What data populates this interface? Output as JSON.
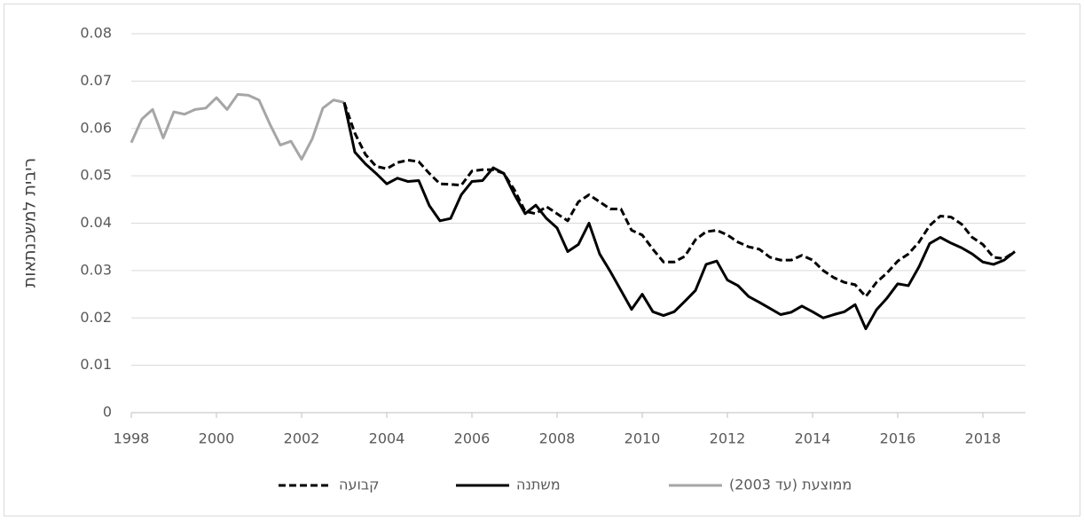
{
  "chart_data": {
    "type": "line",
    "y_label": "ריבית למשכנתאות",
    "x": [
      1998,
      1998.25,
      1998.5,
      1998.75,
      1999,
      1999.25,
      1999.5,
      1999.75,
      2000,
      2000.25,
      2000.5,
      2000.75,
      2001,
      2001.25,
      2001.5,
      2001.75,
      2002,
      2002.25,
      2002.5,
      2002.75,
      2003,
      2003.25,
      2003.5,
      2003.75,
      2004,
      2004.25,
      2004.5,
      2004.75,
      2005,
      2005.25,
      2005.5,
      2005.75,
      2006,
      2006.25,
      2006.5,
      2006.75,
      2007,
      2007.25,
      2007.5,
      2007.75,
      2008,
      2008.25,
      2008.5,
      2008.75,
      2009,
      2009.25,
      2009.5,
      2009.75,
      2010,
      2010.25,
      2010.5,
      2010.75,
      2011,
      2011.25,
      2011.5,
      2011.75,
      2012,
      2012.25,
      2012.5,
      2012.75,
      2013,
      2013.25,
      2013.5,
      2013.75,
      2014,
      2014.25,
      2014.5,
      2014.75,
      2015,
      2015.25,
      2015.5,
      2015.75,
      2016,
      2016.25,
      2016.5,
      2016.75,
      2017,
      2017.25,
      2017.5,
      2017.75,
      2018,
      2018.25,
      2018.5,
      2018.75
    ],
    "series": [
      {
        "name": "קבועה",
        "color": "#000000",
        "style": "dashed",
        "values": [
          null,
          null,
          null,
          null,
          null,
          null,
          null,
          null,
          null,
          null,
          null,
          null,
          null,
          null,
          null,
          null,
          null,
          null,
          null,
          null,
          0.0655,
          0.059,
          0.0545,
          0.052,
          0.0515,
          0.0528,
          0.0533,
          0.053,
          0.0505,
          0.0483,
          0.0482,
          0.048,
          0.051,
          0.0513,
          0.0513,
          0.0505,
          0.047,
          0.0425,
          0.042,
          0.0435,
          0.042,
          0.0405,
          0.0445,
          0.046,
          0.0445,
          0.043,
          0.043,
          0.0385,
          0.0375,
          0.0345,
          0.0318,
          0.0318,
          0.033,
          0.0365,
          0.0382,
          0.0385,
          0.0375,
          0.036,
          0.035,
          0.0345,
          0.0328,
          0.0322,
          0.0322,
          0.0332,
          0.0322,
          0.03,
          0.0285,
          0.0275,
          0.027,
          0.0245,
          0.0275,
          0.0295,
          0.032,
          0.0335,
          0.036,
          0.0395,
          0.0415,
          0.0413,
          0.0398,
          0.037,
          0.0355,
          0.0328,
          0.0325,
          0.034
        ]
      },
      {
        "name": "משתנה",
        "color": "#000000",
        "style": "solid",
        "values": [
          null,
          null,
          null,
          null,
          null,
          null,
          null,
          null,
          null,
          null,
          null,
          null,
          null,
          null,
          null,
          null,
          null,
          null,
          null,
          null,
          0.0655,
          0.055,
          0.0525,
          0.0505,
          0.0483,
          0.0495,
          0.0488,
          0.049,
          0.0437,
          0.0405,
          0.041,
          0.046,
          0.0488,
          0.049,
          0.0517,
          0.0505,
          0.046,
          0.042,
          0.0438,
          0.041,
          0.039,
          0.034,
          0.0355,
          0.04,
          0.0335,
          0.0298,
          0.0258,
          0.0218,
          0.025,
          0.0213,
          0.0205,
          0.0213,
          0.0235,
          0.0258,
          0.0313,
          0.032,
          0.028,
          0.0268,
          0.0245,
          0.0233,
          0.022,
          0.0207,
          0.0212,
          0.0225,
          0.0213,
          0.02,
          0.0207,
          0.0213,
          0.0228,
          0.0177,
          0.0217,
          0.0242,
          0.0272,
          0.0268,
          0.0308,
          0.0357,
          0.037,
          0.0358,
          0.0348,
          0.0335,
          0.0318,
          0.0313,
          0.0322,
          0.034
        ]
      },
      {
        "name": "ממוצעת (עד 2003)",
        "color": "#a6a6a6",
        "style": "solid",
        "values": [
          0.057,
          0.062,
          0.064,
          0.058,
          0.0635,
          0.063,
          0.064,
          0.0643,
          0.0665,
          0.064,
          0.0672,
          0.067,
          0.066,
          0.061,
          0.0565,
          0.0573,
          0.0535,
          0.0578,
          0.0643,
          0.066,
          0.0655,
          null,
          null,
          null,
          null,
          null,
          null,
          null,
          null,
          null,
          null,
          null,
          null,
          null,
          null,
          null,
          null,
          null,
          null,
          null,
          null,
          null,
          null,
          null,
          null,
          null,
          null,
          null,
          null,
          null,
          null,
          null,
          null,
          null,
          null,
          null,
          null,
          null,
          null,
          null,
          null,
          null,
          null,
          null,
          null,
          null,
          null,
          null,
          null,
          null,
          null,
          null,
          null,
          null,
          null,
          null,
          null,
          null,
          null,
          null,
          null,
          null,
          null,
          null
        ]
      }
    ],
    "xlim": [
      1998,
      2019
    ],
    "xticks": [
      1998,
      2000,
      2002,
      2004,
      2006,
      2008,
      2010,
      2012,
      2014,
      2016,
      2018
    ],
    "ylim": [
      0,
      0.08
    ],
    "yticks": [
      0,
      0.01,
      0.02,
      0.03,
      0.04,
      0.05,
      0.06,
      0.07,
      0.08
    ],
    "grid": true,
    "legend": "bottom"
  }
}
